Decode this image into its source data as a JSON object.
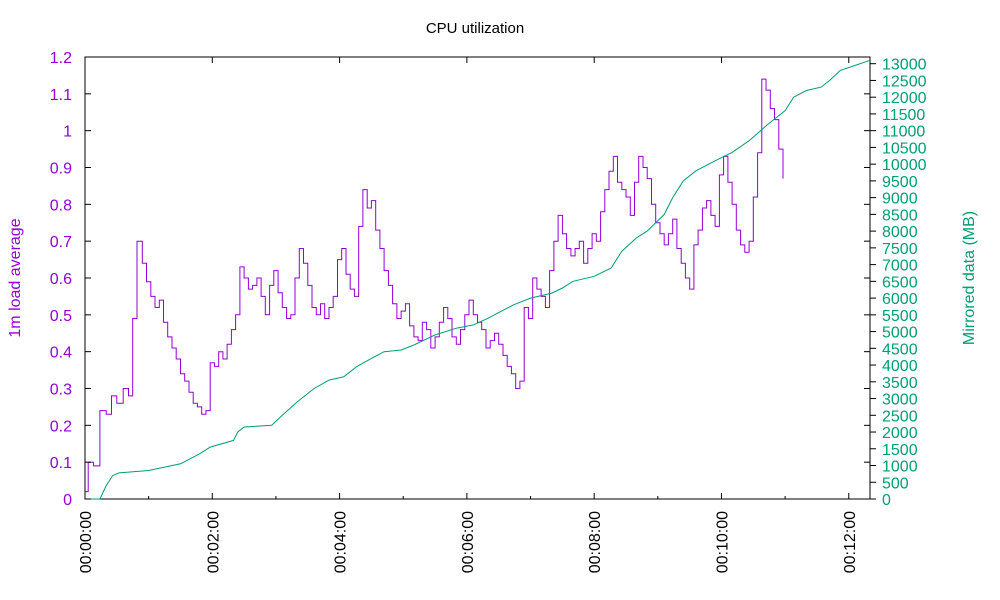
{
  "chart_data": {
    "type": "line",
    "title": "CPU utilization",
    "ylabel": "1m load average",
    "y2label": "Mirrored data (MB)",
    "xlim_seconds": [
      0,
      740
    ],
    "ylim": [
      0,
      1.2
    ],
    "y2lim": [
      0,
      13200
    ],
    "x_ticks": [
      {
        "value": 0,
        "label": "00:00:00"
      },
      {
        "value": 120,
        "label": "00:02:00"
      },
      {
        "value": 240,
        "label": "00:04:00"
      },
      {
        "value": 360,
        "label": "00:06:00"
      },
      {
        "value": 480,
        "label": "00:08:00"
      },
      {
        "value": 600,
        "label": "00:10:00"
      },
      {
        "value": 720,
        "label": "00:12:00"
      }
    ],
    "y_ticks": [
      "0",
      "0.1",
      "0.2",
      "0.3",
      "0.4",
      "0.5",
      "0.6",
      "0.7",
      "0.8",
      "0.9",
      "1",
      "1.1",
      "1.2"
    ],
    "y2_ticks": [
      "0",
      "500",
      "1000",
      "1500",
      "2000",
      "2500",
      "3000",
      "3500",
      "4000",
      "4500",
      "5000",
      "5500",
      "6000",
      "6500",
      "7000",
      "7500",
      "8000",
      "8500",
      "9000",
      "9500",
      "10000",
      "10500",
      "11000",
      "11500",
      "12000",
      "12500",
      "13000"
    ],
    "series": [
      {
        "axis": "left",
        "color": "#9400d3",
        "step": true,
        "points": [
          [
            0,
            0.02
          ],
          [
            3,
            0.1
          ],
          [
            8,
            0.09
          ],
          [
            14,
            0.24
          ],
          [
            20,
            0.23
          ],
          [
            25,
            0.28
          ],
          [
            30,
            0.26
          ],
          [
            36,
            0.3
          ],
          [
            41,
            0.28
          ],
          [
            45,
            0.49
          ],
          [
            49,
            0.7
          ],
          [
            54,
            0.64
          ],
          [
            58,
            0.59
          ],
          [
            62,
            0.55
          ],
          [
            66,
            0.52
          ],
          [
            70,
            0.54
          ],
          [
            74,
            0.48
          ],
          [
            78,
            0.44
          ],
          [
            82,
            0.41
          ],
          [
            86,
            0.38
          ],
          [
            90,
            0.34
          ],
          [
            94,
            0.32
          ],
          [
            98,
            0.29
          ],
          [
            102,
            0.26
          ],
          [
            106,
            0.25
          ],
          [
            110,
            0.23
          ],
          [
            114,
            0.24
          ],
          [
            118,
            0.37
          ],
          [
            122,
            0.36
          ],
          [
            126,
            0.4
          ],
          [
            130,
            0.38
          ],
          [
            134,
            0.42
          ],
          [
            138,
            0.46
          ],
          [
            142,
            0.5
          ],
          [
            146,
            0.63
          ],
          [
            150,
            0.6
          ],
          [
            154,
            0.57
          ],
          [
            158,
            0.58
          ],
          [
            162,
            0.6
          ],
          [
            166,
            0.55
          ],
          [
            170,
            0.5
          ],
          [
            174,
            0.58
          ],
          [
            178,
            0.62
          ],
          [
            182,
            0.56
          ],
          [
            186,
            0.52
          ],
          [
            190,
            0.49
          ],
          [
            194,
            0.5
          ],
          [
            198,
            0.6
          ],
          [
            202,
            0.68
          ],
          [
            206,
            0.64
          ],
          [
            210,
            0.58
          ],
          [
            214,
            0.52
          ],
          [
            218,
            0.5
          ],
          [
            222,
            0.53
          ],
          [
            226,
            0.49
          ],
          [
            230,
            0.52
          ],
          [
            234,
            0.55
          ],
          [
            238,
            0.65
          ],
          [
            242,
            0.68
          ],
          [
            246,
            0.61
          ],
          [
            250,
            0.57
          ],
          [
            254,
            0.55
          ],
          [
            258,
            0.74
          ],
          [
            262,
            0.84
          ],
          [
            266,
            0.79
          ],
          [
            270,
            0.81
          ],
          [
            274,
            0.73
          ],
          [
            278,
            0.68
          ],
          [
            282,
            0.62
          ],
          [
            286,
            0.58
          ],
          [
            290,
            0.53
          ],
          [
            294,
            0.49
          ],
          [
            298,
            0.51
          ],
          [
            302,
            0.53
          ],
          [
            306,
            0.47
          ],
          [
            310,
            0.44
          ],
          [
            314,
            0.43
          ],
          [
            318,
            0.48
          ],
          [
            322,
            0.46
          ],
          [
            326,
            0.41
          ],
          [
            330,
            0.44
          ],
          [
            334,
            0.48
          ],
          [
            338,
            0.52
          ],
          [
            342,
            0.49
          ],
          [
            346,
            0.44
          ],
          [
            350,
            0.42
          ],
          [
            354,
            0.46
          ],
          [
            358,
            0.5
          ],
          [
            362,
            0.54
          ],
          [
            366,
            0.5
          ],
          [
            370,
            0.48
          ],
          [
            374,
            0.46
          ],
          [
            378,
            0.41
          ],
          [
            382,
            0.43
          ],
          [
            386,
            0.45
          ],
          [
            390,
            0.42
          ],
          [
            394,
            0.39
          ],
          [
            398,
            0.36
          ],
          [
            402,
            0.34
          ],
          [
            406,
            0.3
          ],
          [
            410,
            0.32
          ],
          [
            414,
            0.52
          ],
          [
            418,
            0.49
          ],
          [
            422,
            0.6
          ],
          [
            426,
            0.57
          ],
          [
            430,
            0.55
          ],
          [
            434,
            0.52
          ],
          [
            438,
            0.62
          ],
          [
            442,
            0.7
          ],
          [
            446,
            0.77
          ],
          [
            450,
            0.72
          ],
          [
            454,
            0.68
          ],
          [
            458,
            0.66
          ],
          [
            462,
            0.68
          ],
          [
            466,
            0.7
          ],
          [
            470,
            0.64
          ],
          [
            474,
            0.68
          ],
          [
            478,
            0.72
          ],
          [
            482,
            0.7
          ],
          [
            486,
            0.78
          ],
          [
            490,
            0.84
          ],
          [
            494,
            0.89
          ],
          [
            498,
            0.93
          ],
          [
            502,
            0.86
          ],
          [
            506,
            0.84
          ],
          [
            510,
            0.82
          ],
          [
            514,
            0.77
          ],
          [
            518,
            0.86
          ],
          [
            522,
            0.93
          ],
          [
            526,
            0.9
          ],
          [
            530,
            0.87
          ],
          [
            534,
            0.8
          ],
          [
            538,
            0.75
          ],
          [
            542,
            0.72
          ],
          [
            546,
            0.69
          ],
          [
            550,
            0.72
          ],
          [
            554,
            0.76
          ],
          [
            558,
            0.68
          ],
          [
            562,
            0.64
          ],
          [
            566,
            0.6
          ],
          [
            570,
            0.57
          ],
          [
            574,
            0.69
          ],
          [
            578,
            0.73
          ],
          [
            582,
            0.79
          ],
          [
            586,
            0.81
          ],
          [
            590,
            0.77
          ],
          [
            594,
            0.74
          ],
          [
            598,
            0.88
          ],
          [
            602,
            0.93
          ],
          [
            606,
            0.86
          ],
          [
            610,
            0.8
          ],
          [
            614,
            0.73
          ],
          [
            618,
            0.69
          ],
          [
            622,
            0.67
          ],
          [
            626,
            0.7
          ],
          [
            630,
            0.82
          ],
          [
            634,
            0.94
          ],
          [
            638,
            1.14
          ],
          [
            642,
            1.11
          ],
          [
            646,
            1.06
          ],
          [
            650,
            1.03
          ],
          [
            654,
            0.95
          ],
          [
            658,
            0.87
          ]
        ]
      },
      {
        "axis": "right",
        "color": "#009e73",
        "step": false,
        "points": [
          [
            0,
            0
          ],
          [
            14,
            0
          ],
          [
            20,
            400
          ],
          [
            26,
            700
          ],
          [
            32,
            780
          ],
          [
            60,
            850
          ],
          [
            90,
            1050
          ],
          [
            108,
            1350
          ],
          [
            118,
            1550
          ],
          [
            140,
            1750
          ],
          [
            144,
            2000
          ],
          [
            150,
            2150
          ],
          [
            176,
            2200
          ],
          [
            186,
            2500
          ],
          [
            200,
            2900
          ],
          [
            216,
            3300
          ],
          [
            230,
            3550
          ],
          [
            244,
            3650
          ],
          [
            256,
            3950
          ],
          [
            270,
            4200
          ],
          [
            282,
            4400
          ],
          [
            298,
            4450
          ],
          [
            310,
            4600
          ],
          [
            330,
            4900
          ],
          [
            350,
            5100
          ],
          [
            366,
            5200
          ],
          [
            380,
            5400
          ],
          [
            404,
            5800
          ],
          [
            420,
            6000
          ],
          [
            440,
            6150
          ],
          [
            450,
            6300
          ],
          [
            460,
            6500
          ],
          [
            480,
            6650
          ],
          [
            496,
            6900
          ],
          [
            506,
            7400
          ],
          [
            520,
            7800
          ],
          [
            530,
            8000
          ],
          [
            546,
            8500
          ],
          [
            554,
            9000
          ],
          [
            564,
            9500
          ],
          [
            576,
            9800
          ],
          [
            594,
            10100
          ],
          [
            610,
            10350
          ],
          [
            626,
            10700
          ],
          [
            644,
            11200
          ],
          [
            660,
            11600
          ],
          [
            668,
            12000
          ],
          [
            680,
            12200
          ],
          [
            694,
            12300
          ],
          [
            702,
            12500
          ],
          [
            712,
            12800
          ],
          [
            726,
            12950
          ],
          [
            740,
            13100
          ]
        ]
      }
    ]
  }
}
